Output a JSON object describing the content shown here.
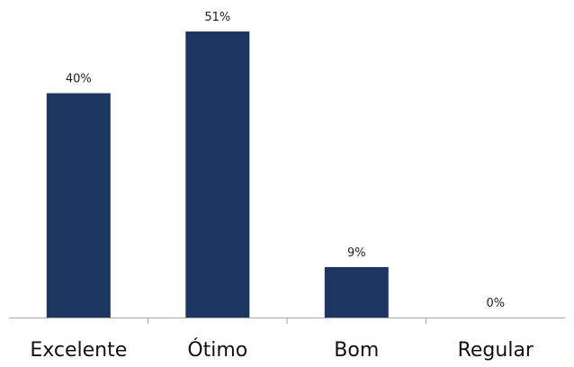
{
  "chart_data": {
    "type": "bar",
    "categories": [
      "Excelente",
      "Ótimo",
      "Bom",
      "Regular"
    ],
    "values": [
      40,
      51,
      9,
      0
    ],
    "value_labels": [
      "40%",
      "51%",
      "9%",
      "0%"
    ],
    "title": "",
    "xlabel": "",
    "ylabel": "",
    "ylim": [
      0,
      51
    ],
    "grid": false,
    "legend": "none"
  },
  "colors": {
    "bar": "#1c375f",
    "axis": "#a6a6a6"
  }
}
